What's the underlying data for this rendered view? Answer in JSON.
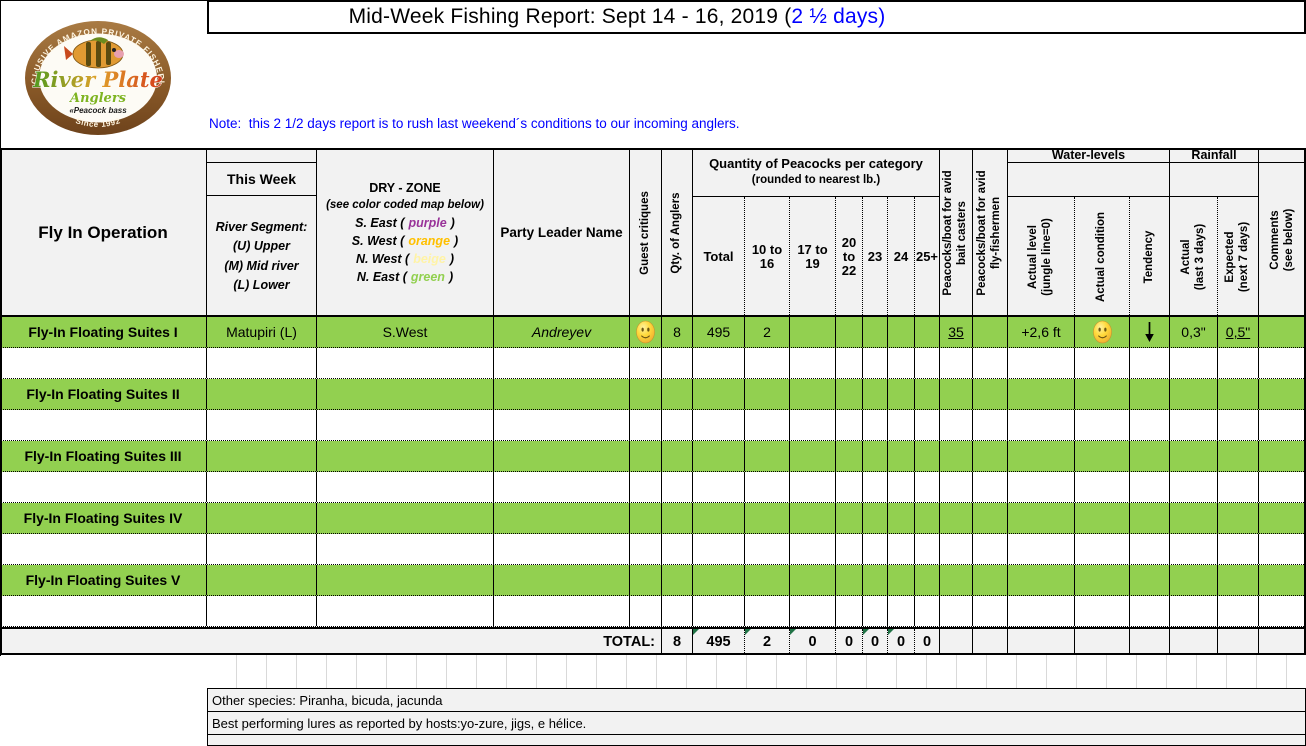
{
  "colors": {
    "accent_blue": "#0000FF",
    "row_green": "#92D050",
    "header_gray": "#F2F2F2",
    "triangle_green": "#217346",
    "logo_brown": "#8A5A28"
  },
  "title": {
    "black": "Mid-Week Fishing Report: Sept 14 - 16, 2019 (",
    "blue": "2 ½ days)"
  },
  "note": "Note:  this 2 1/2 days report is to rush last weekend´s conditions to our incoming anglers.",
  "logo": {
    "arc_top": "EXCLUSIVE AMAZON PRIVATE FISHERIES",
    "name_line1": "River Plate",
    "name_line2": "Anglers",
    "tagline": "«Peacock bass",
    "arc_bottom": "Since 1992"
  },
  "header": {
    "col_operation": "Fly In Operation",
    "this_week": "This Week",
    "river_segment": [
      "River Segment:",
      "(U) Upper",
      "(M) Mid river",
      "(L) Lower"
    ],
    "dry_zone_title": "DRY - ZONE",
    "dry_zone_sub": "(see color coded map below)",
    "dry_zone_items": [
      {
        "prefix": "S. East (",
        "word": "purple",
        "suffix": ")",
        "color": "#993399"
      },
      {
        "prefix": "S. West (",
        "word": "orange",
        "suffix": ")",
        "color": "#FFC000"
      },
      {
        "prefix": "N. West (",
        "word": "beige",
        "suffix": ")",
        "color": "#FFF3A6"
      },
      {
        "prefix": "N. East (",
        "word": "green",
        "suffix": ")",
        "color": "#92D050"
      }
    ],
    "party_leader": "Party Leader Name",
    "guest_critiques": "Guest critiques",
    "qty_anglers": "Qty. of Anglers",
    "peacocks_group_line1": "Quantity of Peacocks per category",
    "peacocks_group_line2": "(rounded to nearest lb.)",
    "categories": [
      "Total",
      "10 to 16",
      "17 to 19",
      "20 to 22",
      "23",
      "24",
      "25+"
    ],
    "bait_casters": "Peacocks/boat for avid\nbait casters",
    "fly_fishermen": "Peacocks/boat for avid\nfly-fishermen",
    "water_levels": "Water-levels",
    "actual_level": "Actual level\n(jungle line=0)",
    "actual_condition": "Actual condition",
    "tendency": "Tendency",
    "rainfall": "Rainfall",
    "rain_actual": "Actual\n(last 3 days)",
    "rain_expected": "Expected\n(next 7 days)",
    "comments": "Comments\n(see below)"
  },
  "rows": [
    {
      "label": "Fly-In Floating Suites I",
      "green": true,
      "cells": {
        "river": "Matupiri (L)",
        "zone": "S.West",
        "leader": "Andreyev",
        "critique": "smiley",
        "anglers": "8",
        "total": "495",
        "cat10_16": "2",
        "bait": "35",
        "level": "+2,6 ft",
        "condition": "smiley",
        "tendency": "down-arrow",
        "rain_actual": "0,3\"",
        "rain_expected": "0,5\""
      }
    },
    {
      "label": "",
      "green": false
    },
    {
      "label": "Fly-In Floating Suites II",
      "green": true
    },
    {
      "label": "",
      "green": false
    },
    {
      "label": "Fly-In Floating Suites III",
      "green": true
    },
    {
      "label": "",
      "green": false
    },
    {
      "label": "Fly-In Floating Suites IV",
      "green": true
    },
    {
      "label": "",
      "green": false
    },
    {
      "label": "Fly-In Floating Suites V",
      "green": true
    },
    {
      "label": "",
      "green": false
    }
  ],
  "total_row": {
    "label": "TOTAL:",
    "anglers": "8",
    "values": [
      "495",
      "2",
      "0",
      "0",
      "0",
      "0",
      "0"
    ]
  },
  "footer": {
    "other_species": "Other species: Piranha, bicuda, jacunda",
    "best_lures": "Best performing lures as reported by hosts:yo-zure, jigs, e hélice."
  }
}
